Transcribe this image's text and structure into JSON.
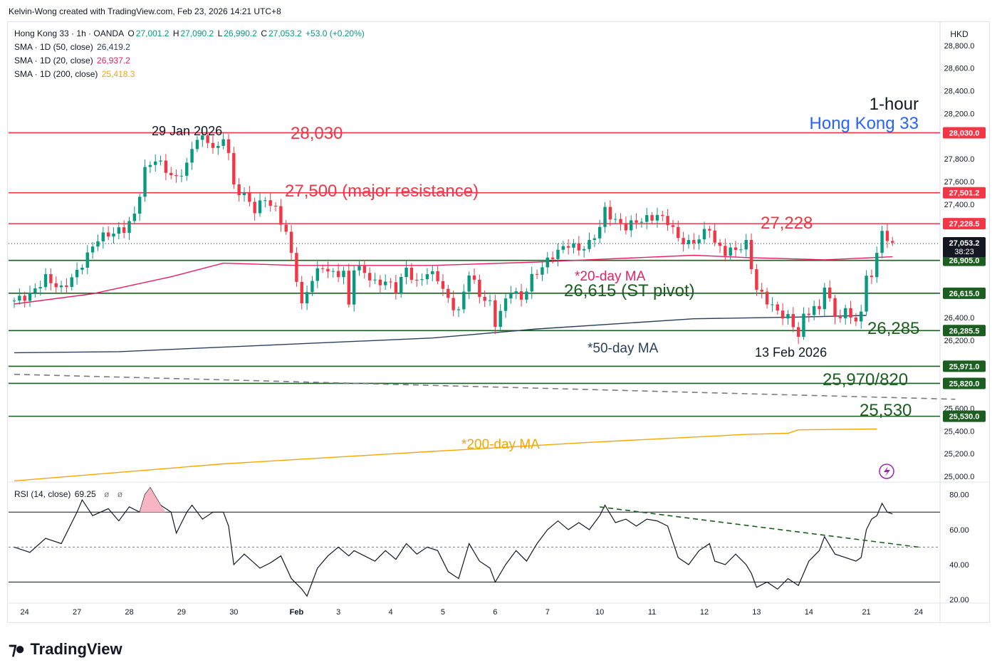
{
  "header": {
    "creator_line": "Kelvin-Wong created with TradingView.com, Feb 23, 2026 14:21 UTC+8"
  },
  "legend": {
    "symbol": "Hong Kong 33 · 1h · OANDA",
    "o_label": "O",
    "o_value": "27,001.2",
    "h_label": "H",
    "h_value": "27,090.2",
    "l_label": "L",
    "l_value": "26,990.2",
    "c_label": "C",
    "c_value": "27,053.2",
    "change": "+53.0 (+0.20%)",
    "sma50_label": "SMA · 1D (50, close)",
    "sma50_value": "26,419.2",
    "sma20_label": "SMA · 1D (20, close)",
    "sma20_value": "26,937.2",
    "sma200_label": "SMA · 1D (200, close)",
    "sma200_value": "25,418.3"
  },
  "rsi_legend": {
    "label": "RSI (14, close)",
    "value": "69.25",
    "extra1": "ø",
    "extra2": "ø"
  },
  "currency": "HKD",
  "footer": {
    "brand": "TradingView"
  },
  "colors": {
    "up": "#089981",
    "down": "#f23645",
    "resistance": "#f23645",
    "support": "#1b5e20",
    "sma20": "#e91e63",
    "sma50": "#2b3f5c",
    "sma200": "#f7a600",
    "rsi": "#131722",
    "current_price_bg": "#131722"
  },
  "chart_data": {
    "type": "candlestick",
    "symbol": "Hong Kong 33",
    "timeframe": "1-hour",
    "title_line1": "1-hour",
    "title_line2": "Hong Kong 33",
    "ylim": [
      24950,
      29000
    ],
    "y_ticks": [
      {
        "value": 25000,
        "label": "25,000.0"
      },
      {
        "value": 25200,
        "label": "25,200.0"
      },
      {
        "value": 25400,
        "label": "25,400.0"
      },
      {
        "value": 25600,
        "label": "25,600.0"
      },
      {
        "value": 26200,
        "label": "26,200.0"
      },
      {
        "value": 26400,
        "label": "26,400.0"
      },
      {
        "value": 27400,
        "label": "27,400.0"
      },
      {
        "value": 27600,
        "label": "27,600.0"
      },
      {
        "value": 27800,
        "label": "27,800.0"
      },
      {
        "value": 28200,
        "label": "28,200.0"
      },
      {
        "value": 28400,
        "label": "28,400.0"
      },
      {
        "value": 28600,
        "label": "28,600.0"
      },
      {
        "value": 28800,
        "label": "28,800.0"
      }
    ],
    "x_ticks": [
      {
        "label": "24",
        "bar": 2
      },
      {
        "label": "27",
        "bar": 12
      },
      {
        "label": "28",
        "bar": 22
      },
      {
        "label": "29",
        "bar": 32
      },
      {
        "label": "30",
        "bar": 42
      },
      {
        "label": "Feb",
        "bar": 54
      },
      {
        "label": "3",
        "bar": 62
      },
      {
        "label": "4",
        "bar": 72
      },
      {
        "label": "5",
        "bar": 82
      },
      {
        "label": "6",
        "bar": 92
      },
      {
        "label": "7",
        "bar": 102
      },
      {
        "label": "10",
        "bar": 112
      },
      {
        "label": "11",
        "bar": 122
      },
      {
        "label": "12",
        "bar": 132
      },
      {
        "label": "13",
        "bar": 142
      },
      {
        "label": "14",
        "bar": 152
      },
      {
        "label": "21",
        "bar": 163
      },
      {
        "label": "24",
        "bar": 173
      }
    ],
    "price_levels": [
      {
        "value": 28030,
        "label": "28,030.0",
        "color": "#f23645",
        "annotation": "28,030"
      },
      {
        "value": 27501.2,
        "label": "27,501.2",
        "color": "#f23645",
        "annotation": "27,500 (major resistance)"
      },
      {
        "value": 27228.5,
        "label": "27,228.5",
        "color": "#f23645",
        "annotation": "27,228"
      },
      {
        "value": 26905,
        "label": "26,905.0",
        "color": "#1b5e20",
        "annotation": ""
      },
      {
        "value": 26615,
        "label": "26,615.0",
        "color": "#1b5e20",
        "annotation": "26,615 (ST pivot)"
      },
      {
        "value": 26285.5,
        "label": "26,285.5",
        "color": "#1b5e20",
        "annotation": "26,285"
      },
      {
        "value": 25971,
        "label": "25,971.0",
        "color": "#1b5e20",
        "annotation": "25,970/820"
      },
      {
        "value": 25820,
        "label": "25,820.0",
        "color": "#1b5e20",
        "annotation": ""
      },
      {
        "value": 25530,
        "label": "25,530.0",
        "color": "#1b5e20",
        "annotation": "25,530"
      }
    ],
    "current_price": {
      "value": 27053.2,
      "label": "27,053.2",
      "countdown": "38:23"
    },
    "annotations": {
      "jan29": "29 Jan 2026",
      "feb13": "13 Feb 2026",
      "ma20": "*20-day MA",
      "ma50": "*50-day MA",
      "ma200": "*200-day MA"
    },
    "close_path": [
      [
        0,
        26550
      ],
      [
        3,
        26600
      ],
      [
        6,
        26750
      ],
      [
        9,
        26650
      ],
      [
        12,
        26800
      ],
      [
        14,
        26950
      ],
      [
        16,
        27100
      ],
      [
        19,
        27150
      ],
      [
        21,
        27180
      ],
      [
        23,
        27300
      ],
      [
        25,
        27700
      ],
      [
        27,
        27800
      ],
      [
        29,
        27700
      ],
      [
        31,
        27620
      ],
      [
        33,
        27750
      ],
      [
        35,
        28000
      ],
      [
        37,
        27950
      ],
      [
        39,
        27880
      ],
      [
        40,
        28000
      ],
      [
        41,
        27850
      ],
      [
        42,
        27550
      ],
      [
        44,
        27480
      ],
      [
        46,
        27350
      ],
      [
        48,
        27450
      ],
      [
        50,
        27350
      ],
      [
        52,
        27150
      ],
      [
        54,
        26750
      ],
      [
        55,
        26500
      ],
      [
        57,
        26750
      ],
      [
        59,
        26850
      ],
      [
        61,
        26780
      ],
      [
        63,
        26800
      ],
      [
        64,
        26500
      ],
      [
        65,
        26850
      ],
      [
        67,
        26800
      ],
      [
        69,
        26700
      ],
      [
        71,
        26720
      ],
      [
        73,
        26650
      ],
      [
        75,
        26830
      ],
      [
        77,
        26700
      ],
      [
        79,
        26800
      ],
      [
        81,
        26750
      ],
      [
        83,
        26550
      ],
      [
        85,
        26450
      ],
      [
        87,
        26800
      ],
      [
        89,
        26600
      ],
      [
        91,
        26520
      ],
      [
        92,
        26350
      ],
      [
        93,
        26450
      ],
      [
        95,
        26650
      ],
      [
        97,
        26560
      ],
      [
        99,
        26750
      ],
      [
        101,
        26850
      ],
      [
        103,
        26950
      ],
      [
        106,
        27050
      ],
      [
        108,
        27000
      ],
      [
        110,
        27050
      ],
      [
        112,
        27200
      ],
      [
        113,
        27350
      ],
      [
        115,
        27250
      ],
      [
        117,
        27200
      ],
      [
        119,
        27250
      ],
      [
        121,
        27270
      ],
      [
        123,
        27300
      ],
      [
        125,
        27250
      ],
      [
        127,
        27100
      ],
      [
        129,
        27050
      ],
      [
        131,
        27100
      ],
      [
        133,
        27200
      ],
      [
        134,
        27050
      ],
      [
        136,
        26980
      ],
      [
        138,
        27000
      ],
      [
        140,
        27050
      ],
      [
        141,
        26850
      ],
      [
        142,
        26650
      ],
      [
        144,
        26550
      ],
      [
        146,
        26450
      ],
      [
        148,
        26400
      ],
      [
        150,
        26250
      ],
      [
        151,
        26400
      ],
      [
        153,
        26500
      ],
      [
        154,
        26450
      ],
      [
        155,
        26700
      ],
      [
        157,
        26400
      ],
      [
        159,
        26450
      ],
      [
        161,
        26380
      ],
      [
        162,
        26420
      ],
      [
        163,
        26800
      ],
      [
        164,
        26750
      ],
      [
        165,
        26950
      ],
      [
        166,
        27200
      ],
      [
        167,
        27050
      ],
      [
        168,
        27060
      ]
    ],
    "sma20_path": [
      [
        0,
        26520
      ],
      [
        15,
        26610
      ],
      [
        30,
        26760
      ],
      [
        40,
        26880
      ],
      [
        54,
        26860
      ],
      [
        80,
        26860
      ],
      [
        100,
        26890
      ],
      [
        130,
        26950
      ],
      [
        140,
        26930
      ],
      [
        155,
        26910
      ],
      [
        168,
        26937
      ]
    ],
    "sma50_path": [
      [
        0,
        26090
      ],
      [
        20,
        26100
      ],
      [
        50,
        26160
      ],
      [
        80,
        26220
      ],
      [
        100,
        26300
      ],
      [
        130,
        26390
      ],
      [
        150,
        26405
      ],
      [
        163,
        26419
      ]
    ],
    "sma200_path": [
      [
        0,
        24960
      ],
      [
        40,
        25110
      ],
      [
        80,
        25220
      ],
      [
        110,
        25300
      ],
      [
        140,
        25370
      ],
      [
        148,
        25380
      ],
      [
        150,
        25410
      ],
      [
        165,
        25418
      ]
    ],
    "dashed_trend": [
      [
        0,
        25900
      ],
      [
        180,
        25680
      ]
    ],
    "rsi": {
      "ylim": [
        18,
        86
      ],
      "levels": [
        70,
        50,
        30
      ],
      "ticks": [
        {
          "value": 80,
          "label": "80.00"
        },
        {
          "value": 60,
          "label": "60.00"
        },
        {
          "value": 40,
          "label": "40.00"
        },
        {
          "value": 20,
          "label": "20.00"
        }
      ],
      "series": [
        [
          0,
          50
        ],
        [
          3,
          47
        ],
        [
          6,
          55
        ],
        [
          9,
          52
        ],
        [
          12,
          70
        ],
        [
          13,
          77
        ],
        [
          15,
          68
        ],
        [
          18,
          72
        ],
        [
          20,
          65
        ],
        [
          22,
          73
        ],
        [
          24,
          70
        ],
        [
          25,
          80
        ],
        [
          26,
          84
        ],
        [
          28,
          74
        ],
        [
          30,
          70
        ],
        [
          31,
          58
        ],
        [
          33,
          70
        ],
        [
          34,
          74
        ],
        [
          36,
          66
        ],
        [
          38,
          70
        ],
        [
          40,
          70
        ],
        [
          41,
          62
        ],
        [
          42,
          40
        ],
        [
          44,
          46
        ],
        [
          47,
          38
        ],
        [
          49,
          41
        ],
        [
          51,
          45
        ],
        [
          53,
          32
        ],
        [
          55,
          26
        ],
        [
          56,
          22
        ],
        [
          58,
          38
        ],
        [
          60,
          45
        ],
        [
          62,
          50
        ],
        [
          64,
          45
        ],
        [
          65,
          48
        ],
        [
          67,
          45
        ],
        [
          69,
          42
        ],
        [
          71,
          48
        ],
        [
          73,
          43
        ],
        [
          75,
          52
        ],
        [
          77,
          46
        ],
        [
          79,
          50
        ],
        [
          81,
          48
        ],
        [
          83,
          36
        ],
        [
          85,
          32
        ],
        [
          87,
          52
        ],
        [
          89,
          42
        ],
        [
          91,
          38
        ],
        [
          92,
          30
        ],
        [
          94,
          40
        ],
        [
          96,
          48
        ],
        [
          98,
          42
        ],
        [
          100,
          52
        ],
        [
          102,
          60
        ],
        [
          104,
          65
        ],
        [
          106,
          60
        ],
        [
          108,
          64
        ],
        [
          110,
          60
        ],
        [
          112,
          68
        ],
        [
          113,
          74
        ],
        [
          115,
          64
        ],
        [
          117,
          66
        ],
        [
          119,
          62
        ],
        [
          121,
          66
        ],
        [
          123,
          65
        ],
        [
          125,
          62
        ],
        [
          127,
          44
        ],
        [
          129,
          40
        ],
        [
          131,
          48
        ],
        [
          133,
          52
        ],
        [
          134,
          42
        ],
        [
          136,
          40
        ],
        [
          138,
          46
        ],
        [
          140,
          40
        ],
        [
          141,
          35
        ],
        [
          142,
          27
        ],
        [
          144,
          30
        ],
        [
          146,
          26
        ],
        [
          148,
          32
        ],
        [
          150,
          28
        ],
        [
          152,
          42
        ],
        [
          154,
          48
        ],
        [
          155,
          56
        ],
        [
          157,
          46
        ],
        [
          159,
          44
        ],
        [
          161,
          42
        ],
        [
          162,
          44
        ],
        [
          163,
          60
        ],
        [
          164,
          66
        ],
        [
          165,
          68
        ],
        [
          166,
          75
        ],
        [
          167,
          70
        ],
        [
          168,
          69
        ]
      ],
      "trendline": [
        [
          112,
          73
        ],
        [
          173,
          50
        ]
      ]
    }
  }
}
